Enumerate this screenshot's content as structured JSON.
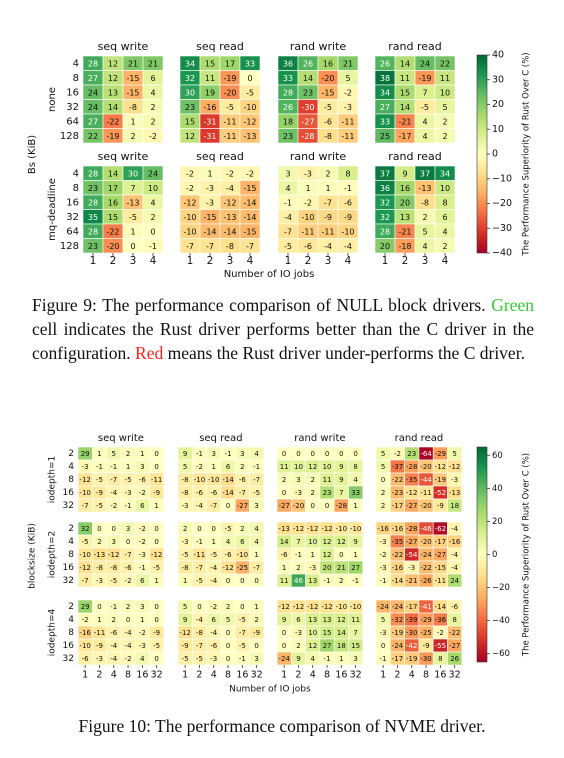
{
  "chart_data": [
    {
      "type": "heatmap",
      "ylabel": "Bs (KiB)",
      "xlabel": "Number of IO jobs",
      "colorbar_label": "The Performance Superiority of Rust Over C (%)",
      "colormap": "RdYlGn",
      "clim": [
        -40,
        40
      ],
      "cticks": [
        {
          "value": -40,
          "label": "−40"
        },
        {
          "value": -30,
          "label": "−30"
        },
        {
          "value": -20,
          "label": "−20"
        },
        {
          "value": -10,
          "label": "−10"
        },
        0,
        10,
        20,
        30,
        40
      ],
      "row_groups": [
        "none",
        "mq-deadline"
      ],
      "col_titles": [
        "seq write",
        "seq read",
        "rand write",
        "rand read"
      ],
      "x": [
        1,
        2,
        3,
        4
      ],
      "y": [
        4,
        8,
        16,
        32,
        64,
        128
      ],
      "panels": [
        [
          [
            [
              28,
              12,
              21,
              21
            ],
            [
              27,
              12,
              -15,
              6
            ],
            [
              24,
              13,
              -15,
              4
            ],
            [
              24,
              14,
              -8,
              2
            ],
            [
              27,
              -22,
              1,
              2
            ],
            [
              22,
              -19,
              2,
              -2
            ]
          ],
          [
            [
              34,
              15,
              17,
              33
            ],
            [
              32,
              11,
              -19,
              0
            ],
            [
              30,
              19,
              -20,
              -5
            ],
            [
              23,
              -16,
              -5,
              -10
            ],
            [
              15,
              -31,
              -11,
              -12
            ],
            [
              12,
              -31,
              -11,
              -13
            ]
          ],
          [
            [
              36,
              26,
              16,
              21
            ],
            [
              33,
              14,
              -20,
              5
            ],
            [
              28,
              23,
              -15,
              -2
            ],
            [
              26,
              -30,
              -5,
              -3
            ],
            [
              18,
              -27,
              -6,
              -11
            ],
            [
              23,
              -28,
              -8,
              -11
            ]
          ],
          [
            [
              26,
              14,
              24,
              22
            ],
            [
              38,
              11,
              -19,
              11
            ],
            [
              34,
              15,
              7,
              10
            ],
            [
              27,
              14,
              -5,
              5
            ],
            [
              33,
              -21,
              4,
              2
            ],
            [
              25,
              -17,
              4,
              2
            ]
          ]
        ],
        [
          [
            [
              28,
              14,
              30,
              24
            ],
            [
              23,
              17,
              7,
              10
            ],
            [
              28,
              16,
              -13,
              4
            ],
            [
              35,
              15,
              -5,
              2
            ],
            [
              28,
              -22,
              1,
              0
            ],
            [
              23,
              -20,
              0,
              -1
            ]
          ],
          [
            [
              -2,
              1,
              -2,
              -2
            ],
            [
              -2,
              -3,
              -4,
              -15
            ],
            [
              -12,
              -3,
              -12,
              -14
            ],
            [
              -10,
              -15,
              -13,
              -14
            ],
            [
              -10,
              -14,
              -14,
              -15
            ],
            [
              -7,
              -7,
              -8,
              -7
            ]
          ],
          [
            [
              3,
              -3,
              2,
              8
            ],
            [
              4,
              1,
              1,
              -1
            ],
            [
              -1,
              -2,
              -7,
              -6
            ],
            [
              -4,
              -10,
              -9,
              -9
            ],
            [
              -7,
              -11,
              -11,
              -10
            ],
            [
              -5,
              -6,
              -4,
              -4
            ]
          ],
          [
            [
              37,
              9,
              37,
              34
            ],
            [
              36,
              16,
              -13,
              10
            ],
            [
              32,
              20,
              -8,
              8
            ],
            [
              32,
              13,
              2,
              6
            ],
            [
              28,
              -21,
              5,
              4
            ],
            [
              20,
              -18,
              4,
              2
            ]
          ]
        ]
      ],
      "caption": [
        "Figure 9: The performance comparison of NULL block drivers. ",
        "Green",
        " cell indicates the Rust driver performs better than the C driver in the configuration. ",
        "Red",
        " means the Rust driver under-performs the C driver."
      ]
    },
    {
      "type": "heatmap",
      "ylabel": "blocksize (KiB)",
      "xlabel": "Number of IO jobs",
      "colorbar_label": "The Performance Superiority of Rust Over C (%)",
      "colormap": "RdYlGn",
      "clim": [
        -65,
        65
      ],
      "cticks": [
        {
          "value": -60,
          "label": "−60"
        },
        {
          "value": -40,
          "label": "−40"
        },
        {
          "value": -20,
          "label": "−20"
        },
        0,
        20,
        40,
        60
      ],
      "row_groups": [
        "iodepth=1",
        "iodepth=2",
        "iodepth=4"
      ],
      "col_titles": [
        "seq write",
        "seq read",
        "rand write",
        "rand read"
      ],
      "x": [
        1,
        2,
        4,
        8,
        16,
        32
      ],
      "y": [
        2,
        4,
        8,
        16,
        32
      ],
      "panels": [
        [
          [
            [
              29,
              1,
              5,
              2,
              1,
              0
            ],
            [
              -3,
              -1,
              -1,
              1,
              3,
              0
            ],
            [
              -12,
              -5,
              -7,
              -5,
              -6,
              -11
            ],
            [
              -10,
              -9,
              -4,
              -3,
              -2,
              -9
            ],
            [
              -7,
              -5,
              -2,
              -1,
              6,
              1
            ]
          ],
          [
            [
              9,
              -1,
              3,
              -1,
              3,
              4
            ],
            [
              5,
              -2,
              1,
              6,
              2,
              -1
            ],
            [
              -8,
              -10,
              -10,
              -14,
              -6,
              -7
            ],
            [
              -8,
              -6,
              -6,
              -14,
              -7,
              -5
            ],
            [
              -3,
              -4,
              -7,
              0,
              -27,
              3
            ]
          ],
          [
            [
              0,
              0,
              0,
              0,
              0,
              0
            ],
            [
              11,
              10,
              12,
              10,
              9,
              8
            ],
            [
              2,
              3,
              2,
              11,
              9,
              4
            ],
            [
              0,
              -3,
              2,
              23,
              7,
              33
            ],
            [
              -27,
              -20,
              0,
              0,
              -28,
              1
            ]
          ],
          [
            [
              5,
              -2,
              23,
              -64,
              -29,
              5
            ],
            [
              5,
              -37,
              -28,
              -20,
              -12,
              -12
            ],
            [
              0,
              -22,
              -35,
              -44,
              -19,
              -3
            ],
            [
              2,
              -23,
              -12,
              -11,
              -52,
              -13
            ],
            [
              2,
              -17,
              -27,
              -20,
              -9,
              18
            ]
          ]
        ],
        [
          [
            [
              32,
              0,
              0,
              3,
              -2,
              0
            ],
            [
              -5,
              2,
              3,
              0,
              -2,
              0
            ],
            [
              -10,
              -13,
              -12,
              -7,
              -3,
              -12
            ],
            [
              -12,
              -8,
              -8,
              -6,
              -1,
              -5
            ],
            [
              -7,
              -3,
              -5,
              -2,
              6,
              1
            ]
          ],
          [
            [
              2,
              0,
              0,
              -5,
              2,
              4
            ],
            [
              -3,
              -1,
              1,
              4,
              6,
              4
            ],
            [
              -5,
              -11,
              -5,
              -6,
              -10,
              1
            ],
            [
              -8,
              -7,
              -4,
              -12,
              -25,
              -7
            ],
            [
              1,
              -5,
              -4,
              0,
              0,
              0
            ]
          ],
          [
            [
              -13,
              -12,
              -12,
              -12,
              -10,
              -10
            ],
            [
              14,
              7,
              10,
              12,
              12,
              9
            ],
            [
              -6,
              -1,
              1,
              12,
              0,
              1
            ],
            [
              1,
              2,
              -3,
              20,
              21,
              27
            ],
            [
              11,
              46,
              13,
              -1,
              2,
              -1
            ]
          ],
          [
            [
              -16,
              -16,
              -28,
              -46,
              -62,
              -4
            ],
            [
              -3,
              -35,
              -27,
              -20,
              -17,
              -16
            ],
            [
              -2,
              -22,
              -54,
              -24,
              -27,
              -4
            ],
            [
              -3,
              -16,
              -3,
              -22,
              -15,
              -4
            ],
            [
              -1,
              -14,
              -21,
              -26,
              -11,
              24
            ]
          ]
        ],
        [
          [
            [
              29,
              0,
              -1,
              2,
              3,
              0
            ],
            [
              -2,
              1,
              2,
              0,
              1,
              0
            ],
            [
              -16,
              -11,
              -6,
              -4,
              -2,
              -9
            ],
            [
              -10,
              -9,
              -4,
              -4,
              -3,
              -5
            ],
            [
              -6,
              -3,
              -4,
              -2,
              4,
              0
            ]
          ],
          [
            [
              5,
              0,
              -2,
              2,
              0,
              1
            ],
            [
              9,
              -4,
              6,
              5,
              -5,
              2
            ],
            [
              -12,
              -8,
              -4,
              0,
              -7,
              -9
            ],
            [
              -9,
              -7,
              -6,
              0,
              -5,
              0
            ],
            [
              -5,
              -5,
              -3,
              0,
              -1,
              3
            ]
          ],
          [
            [
              -12,
              -12,
              -12,
              -12,
              -10,
              -10
            ],
            [
              9,
              6,
              13,
              13,
              12,
              11
            ],
            [
              0,
              -3,
              10,
              15,
              14,
              7
            ],
            [
              0,
              2,
              12,
              27,
              18,
              15
            ],
            [
              -24,
              9,
              4,
              -1,
              1,
              3
            ]
          ],
          [
            [
              -24,
              -24,
              -17,
              -41,
              -14,
              -6
            ],
            [
              5,
              -32,
              -39,
              -29,
              -36,
              8
            ],
            [
              -3,
              -19,
              -30,
              -25,
              -2,
              -22
            ],
            [
              0,
              -24,
              -42,
              -9,
              -55,
              -27
            ],
            [
              -1,
              -17,
              -19,
              -30,
              8,
              26
            ]
          ]
        ]
      ],
      "caption": [
        "Figure 10: The performance comparison of NVME driver."
      ]
    }
  ]
}
